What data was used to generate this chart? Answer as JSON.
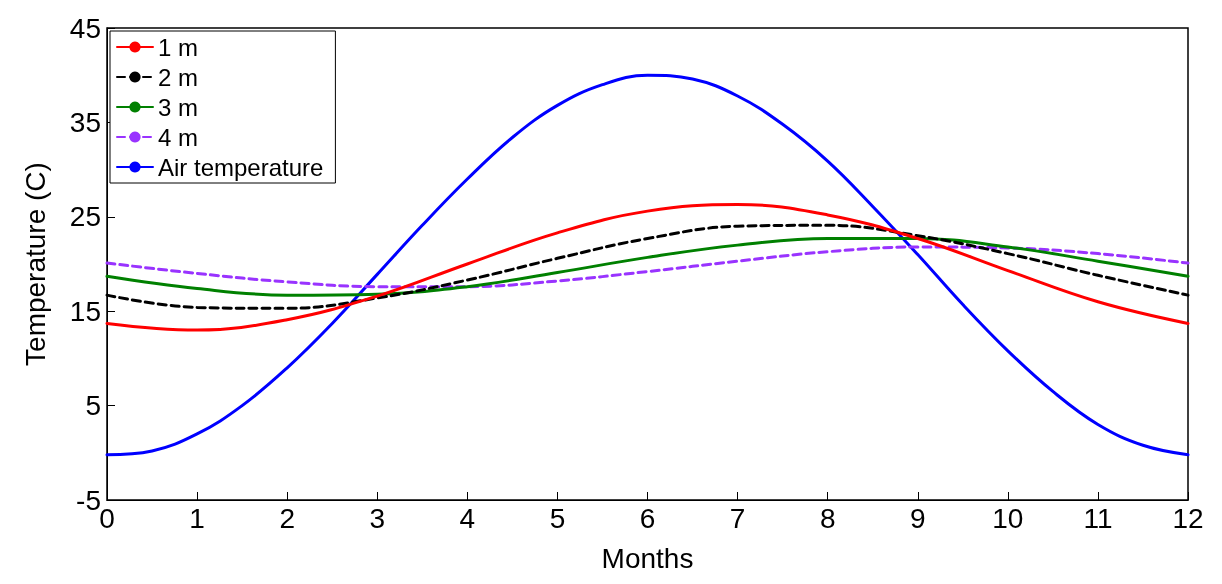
{
  "chart_data": {
    "type": "line",
    "xlabel": "Months",
    "ylabel": "Temperature (C)",
    "xlim": [
      0,
      12
    ],
    "xticks": [
      0,
      1,
      2,
      3,
      4,
      5,
      6,
      7,
      8,
      9,
      10,
      11,
      12
    ],
    "ylim": [
      -5,
      45
    ],
    "yticks": [
      -5,
      5,
      15,
      25,
      35,
      45
    ],
    "grid": false,
    "legend": "top left",
    "series": [
      {
        "name": "1 m",
        "color": "#ff0000",
        "line_style": "solid",
        "x": [
          0,
          1,
          2,
          3,
          4,
          5,
          6,
          7,
          8,
          9,
          10,
          11,
          12
        ],
        "values": [
          13.7,
          13.0,
          14.1,
          16.6,
          20.0,
          23.3,
          25.6,
          26.3,
          25.2,
          22.7,
          19.3,
          16.0,
          13.7
        ]
      },
      {
        "name": "2 m",
        "color": "#000000",
        "line_style": "dashed",
        "x": [
          0,
          1,
          2,
          3,
          4,
          5,
          6,
          7,
          8,
          9,
          10,
          11,
          12
        ],
        "values": [
          16.7,
          15.4,
          15.3,
          16.4,
          18.3,
          20.6,
          22.7,
          24.0,
          24.1,
          23.0,
          21.1,
          18.8,
          16.7
        ]
      },
      {
        "name": "3 m",
        "color": "#008000",
        "line_style": "solid",
        "x": [
          0,
          1,
          2,
          3,
          4,
          5,
          6,
          7,
          8,
          9,
          10,
          11,
          12
        ],
        "values": [
          18.7,
          17.4,
          16.7,
          16.8,
          17.6,
          19.1,
          20.7,
          22.0,
          22.7,
          22.7,
          21.8,
          20.3,
          18.7
        ]
      },
      {
        "name": "4 m",
        "color": "#9933ff",
        "line_style": "dashed",
        "x": [
          0,
          1,
          2,
          3,
          4,
          5,
          6,
          7,
          8,
          9,
          10,
          11,
          12
        ],
        "values": [
          20.1,
          19.0,
          18.1,
          17.6,
          17.6,
          18.2,
          19.2,
          20.3,
          21.3,
          21.8,
          21.7,
          21.1,
          20.1
        ]
      },
      {
        "name": "Air temperature",
        "color": "#0000ff",
        "line_style": "solid",
        "x": [
          0,
          0.5,
          1,
          1.5,
          2,
          2.5,
          3,
          3.5,
          4,
          4.5,
          5,
          5.5,
          6,
          6.5,
          7,
          7.5,
          8,
          8.5,
          9,
          9.5,
          10,
          10.5,
          11,
          11.5,
          12
        ],
        "values": [
          -0.2,
          0.2,
          2.0,
          5.0,
          9.0,
          13.7,
          18.9,
          24.1,
          29.0,
          33.4,
          36.8,
          39.0,
          40.0,
          39.6,
          37.8,
          34.8,
          30.9,
          26.1,
          21.0,
          15.7,
          10.8,
          6.5,
          3.0,
          0.8,
          -0.2
        ]
      }
    ]
  }
}
